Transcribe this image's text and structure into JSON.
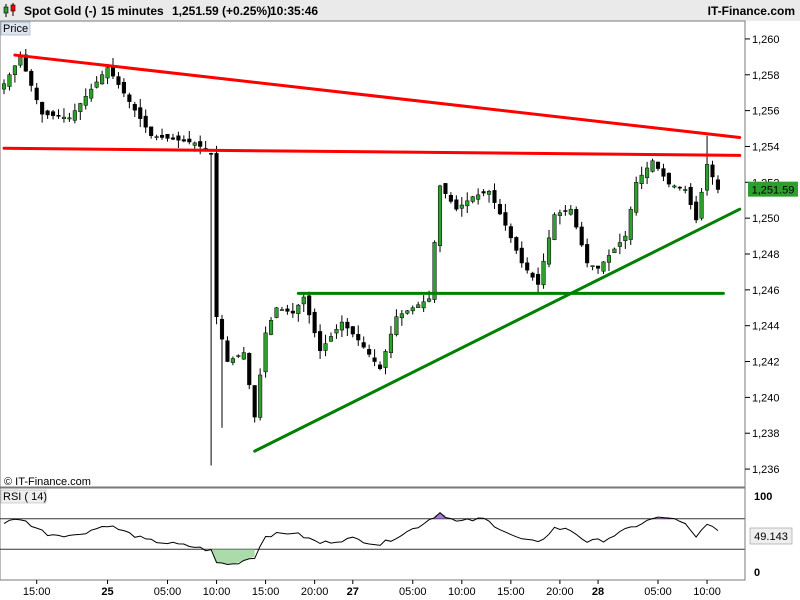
{
  "header": {
    "instrument": "Spot Gold (-)",
    "interval": "15 minutes",
    "price": "1,251.59 (+0.25%)",
    "time": "10:35:46",
    "brand": "IT-Finance.com"
  },
  "chart_data": [
    {
      "type": "candlestick",
      "title": "Price",
      "watermark": "© IT-Finance.com",
      "ylim": [
        1235,
        1261
      ],
      "y_ticks": [
        1236,
        1238,
        1240,
        1242,
        1244,
        1246,
        1248,
        1250,
        1252,
        1254,
        1256,
        1258,
        1260
      ],
      "y_tick_labels": [
        "1,236",
        "1,238",
        "1,240",
        "1,242",
        "1,244",
        "1,246",
        "1,248",
        "1,250",
        "1,252",
        "1,254",
        "1,256",
        "1,258",
        "1,260"
      ],
      "x_ticks": [
        {
          "label": "15:00",
          "bar": 6
        },
        {
          "label": "25",
          "bar": 19,
          "bold": true
        },
        {
          "label": "05:00",
          "bar": 30
        },
        {
          "label": "10:00",
          "bar": 39
        },
        {
          "label": "15:00",
          "bar": 48
        },
        {
          "label": "20:00",
          "bar": 57
        },
        {
          "label": "27",
          "bar": 64,
          "bold": true
        },
        {
          "label": "05:00",
          "bar": 75
        },
        {
          "label": "10:00",
          "bar": 84
        },
        {
          "label": "15:00",
          "bar": 93
        },
        {
          "label": "20:00",
          "bar": 102
        },
        {
          "label": "28",
          "bar": 109,
          "bold": true
        },
        {
          "label": "05:00",
          "bar": 120
        },
        {
          "label": "10:00",
          "bar": 129
        }
      ],
      "last_price": "1,251.59",
      "last_value": 1251.59,
      "colors": {
        "up": "#2e9e2e",
        "down": "#000000",
        "resistance": "#ff0000",
        "support": "#008000",
        "last_price_bg": "#2e9e2e"
      },
      "key_points": [
        {
          "bar": 0,
          "price": 1257.5
        },
        {
          "bar": 3,
          "price": 1259.0
        },
        {
          "bar": 7,
          "price": 1255.8
        },
        {
          "bar": 12,
          "price": 1255.6
        },
        {
          "bar": 19,
          "price": 1258.4
        },
        {
          "bar": 27,
          "price": 1254.6
        },
        {
          "bar": 35,
          "price": 1254.2
        },
        {
          "bar": 38,
          "price": 1253.6
        },
        {
          "bar": 39,
          "price": 1244.5
        },
        {
          "bar": 41,
          "price": 1242.0
        },
        {
          "bar": 44,
          "price": 1242.5
        },
        {
          "bar": 46,
          "price": 1238.9
        },
        {
          "bar": 48,
          "price": 1243.6
        },
        {
          "bar": 50,
          "price": 1245.0
        },
        {
          "bar": 53,
          "price": 1244.7
        },
        {
          "bar": 55,
          "price": 1245.6
        },
        {
          "bar": 58,
          "price": 1242.6
        },
        {
          "bar": 62,
          "price": 1244.2
        },
        {
          "bar": 65,
          "price": 1243.2
        },
        {
          "bar": 69,
          "price": 1241.6
        },
        {
          "bar": 72,
          "price": 1244.5
        },
        {
          "bar": 78,
          "price": 1245.5
        },
        {
          "bar": 80,
          "price": 1251.8
        },
        {
          "bar": 83,
          "price": 1250.5
        },
        {
          "bar": 86,
          "price": 1251.2
        },
        {
          "bar": 89,
          "price": 1251.5
        },
        {
          "bar": 92,
          "price": 1249.6
        },
        {
          "bar": 95,
          "price": 1247.5
        },
        {
          "bar": 98,
          "price": 1246.3
        },
        {
          "bar": 101,
          "price": 1250.2
        },
        {
          "bar": 104,
          "price": 1250.5
        },
        {
          "bar": 107,
          "price": 1247.5
        },
        {
          "bar": 109,
          "price": 1247.2
        },
        {
          "bar": 114,
          "price": 1249.0
        },
        {
          "bar": 116,
          "price": 1252.0
        },
        {
          "bar": 119,
          "price": 1253.2
        },
        {
          "bar": 122,
          "price": 1251.9
        },
        {
          "bar": 125,
          "price": 1251.6
        },
        {
          "bar": 127,
          "price": 1249.9
        },
        {
          "bar": 129,
          "price": 1253.0
        },
        {
          "bar": 131,
          "price": 1251.6
        }
      ],
      "extreme_wicks": [
        {
          "bar": 38,
          "low": 1236.2
        },
        {
          "bar": 40,
          "low": 1238.3
        },
        {
          "bar": 46,
          "low": 1238.6
        },
        {
          "bar": 3,
          "high": 1259.3
        },
        {
          "bar": 129,
          "high": 1254.6
        }
      ],
      "trendlines": [
        {
          "name": "upper-resistance",
          "color": "red",
          "from": {
            "bar": 2,
            "price": 1259.1
          },
          "to": {
            "bar": 135,
            "price": 1254.5
          }
        },
        {
          "name": "horizontal-resistance",
          "color": "red",
          "from": {
            "bar": 0,
            "price": 1253.9
          },
          "to": {
            "bar": 135,
            "price": 1253.5
          }
        },
        {
          "name": "horizontal-support",
          "color": "green",
          "from": {
            "bar": 54,
            "price": 1245.8
          },
          "to": {
            "bar": 132,
            "price": 1245.8
          }
        },
        {
          "name": "rising-support",
          "color": "green",
          "from": {
            "bar": 46,
            "price": 1237.0
          },
          "to": {
            "bar": 135,
            "price": 1250.5
          }
        }
      ]
    },
    {
      "type": "line",
      "title": "RSI ( 14)",
      "ylim": [
        0,
        100
      ],
      "y_tick_labels": [
        "0",
        "100"
      ],
      "levels": [
        30,
        70
      ],
      "last_value": "49.143",
      "colors": {
        "line": "#000000",
        "overbought_fill": "#8a4fc4",
        "oversold_fill": "#8fcf8f",
        "last_value_bg": "#e8e8e8"
      },
      "key_points": [
        {
          "bar": 0,
          "value": 65
        },
        {
          "bar": 3,
          "value": 70
        },
        {
          "bar": 8,
          "value": 50
        },
        {
          "bar": 13,
          "value": 48
        },
        {
          "bar": 19,
          "value": 62
        },
        {
          "bar": 26,
          "value": 42
        },
        {
          "bar": 35,
          "value": 33
        },
        {
          "bar": 38,
          "value": 28
        },
        {
          "bar": 39,
          "value": 12
        },
        {
          "bar": 42,
          "value": 10
        },
        {
          "bar": 45,
          "value": 18
        },
        {
          "bar": 46,
          "value": 20
        },
        {
          "bar": 48,
          "value": 48
        },
        {
          "bar": 53,
          "value": 52
        },
        {
          "bar": 58,
          "value": 38
        },
        {
          "bar": 64,
          "value": 44
        },
        {
          "bar": 69,
          "value": 36
        },
        {
          "bar": 76,
          "value": 60
        },
        {
          "bar": 80,
          "value": 78
        },
        {
          "bar": 83,
          "value": 66
        },
        {
          "bar": 88,
          "value": 70
        },
        {
          "bar": 94,
          "value": 45
        },
        {
          "bar": 98,
          "value": 38
        },
        {
          "bar": 101,
          "value": 58
        },
        {
          "bar": 104,
          "value": 55
        },
        {
          "bar": 107,
          "value": 40
        },
        {
          "bar": 110,
          "value": 42
        },
        {
          "bar": 115,
          "value": 58
        },
        {
          "bar": 119,
          "value": 70
        },
        {
          "bar": 122,
          "value": 72
        },
        {
          "bar": 125,
          "value": 62
        },
        {
          "bar": 127,
          "value": 45
        },
        {
          "bar": 129,
          "value": 65
        },
        {
          "bar": 131,
          "value": 52
        }
      ]
    }
  ]
}
